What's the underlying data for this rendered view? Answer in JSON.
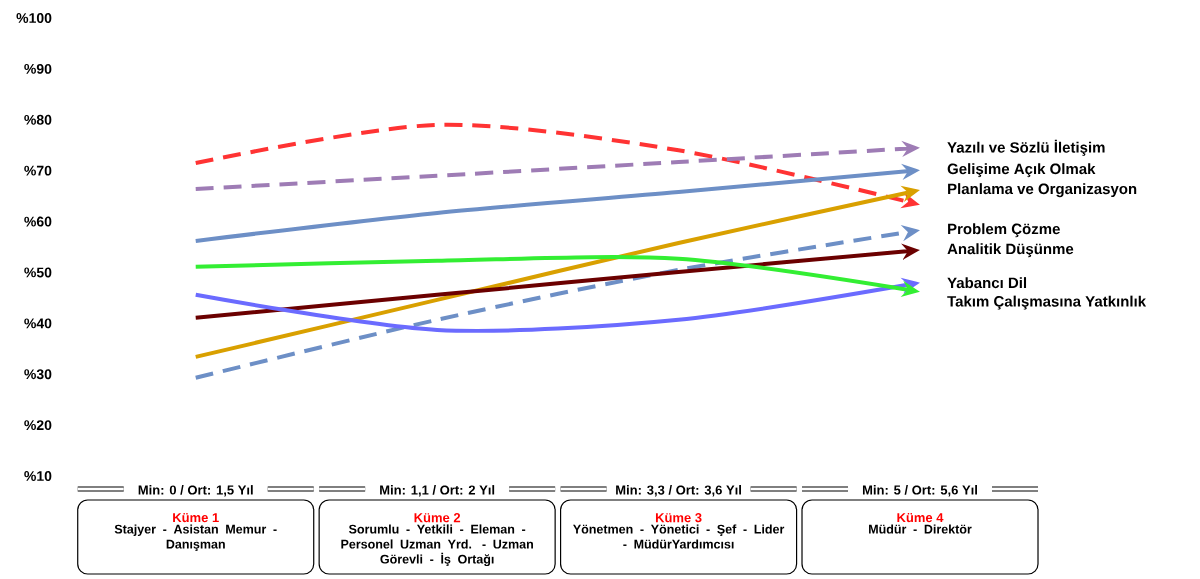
{
  "chart_data": {
    "type": "line",
    "categories": [
      "Min: 0 / Ort: 1,5 Yıl",
      "Min: 1,1 / Ort: 2 Yıl",
      "Min: 3,3 / Ort: 3,6 Yıl",
      "Min: 5 / Ort: 5,6 Yıl"
    ],
    "series": [
      {
        "color": "#ff3333",
        "line_style": "dashed",
        "values": [
          71.5,
          79,
          74,
          63.3
        ]
      },
      {
        "name": "Yazılı ve Sözlü İletişim",
        "color": "#9e7cb5",
        "line_style": "dashed",
        "values": [
          66.4,
          69,
          71.7,
          74.5
        ]
      },
      {
        "name": "Gelişime Açık Olmak",
        "color": "#6d8fc6",
        "line_style": "solid",
        "values": [
          56.2,
          61.7,
          65.8,
          70.1
        ]
      },
      {
        "name": "Planlama ve Organizasyon",
        "color": "#d9a000",
        "line_style": "solid",
        "values": [
          33.4,
          44.6,
          55.8,
          66.2
        ]
      },
      {
        "name": "Problem Çözme",
        "color": "#6d8fc6",
        "line_style": "dashed",
        "values": [
          29.3,
          40.7,
          50.5,
          58.3
        ]
      },
      {
        "name": "Analitik Düşünme",
        "color": "#6b0000",
        "line_style": "solid",
        "values": [
          41.1,
          45.6,
          50.1,
          54.4
        ]
      },
      {
        "name": "Yabancı Dil",
        "color": "#6b6bff",
        "line_style": "solid",
        "values": [
          45.6,
          38.7,
          40.7,
          48
        ]
      },
      {
        "name": "Takım Çalışmasına Yatkınlık",
        "color": "#33ee33",
        "line_style": "solid",
        "values": [
          51.1,
          52.3,
          52.7,
          46.2
        ]
      }
    ],
    "ylim": [
      10,
      100
    ],
    "yticks": [
      {
        "value": 10,
        "label": "%10"
      },
      {
        "value": 20,
        "label": "%20"
      },
      {
        "value": 30,
        "label": "%30"
      },
      {
        "value": 40,
        "label": "%40"
      },
      {
        "value": 50,
        "label": "%50"
      },
      {
        "value": 60,
        "label": "%60"
      },
      {
        "value": 70,
        "label": "%70"
      },
      {
        "value": 80,
        "label": "%80"
      },
      {
        "value": 90,
        "label": "%90"
      },
      {
        "value": 100,
        "label": "%100"
      }
    ],
    "annotations": [
      "Küme 1",
      "Stajyer - Asistan Memur - Danışman",
      "Küme 2",
      "Sorumlu - Yetkili - Eleman - Personel Uzman Yrd. - Uzman Görevli - İş Ortağı",
      "Küme 3",
      "Yönetmen - Yönetici - Şef - Lider - MüdürYardımcısı",
      "Küme 4",
      "Müdür - Direktör"
    ]
  }
}
